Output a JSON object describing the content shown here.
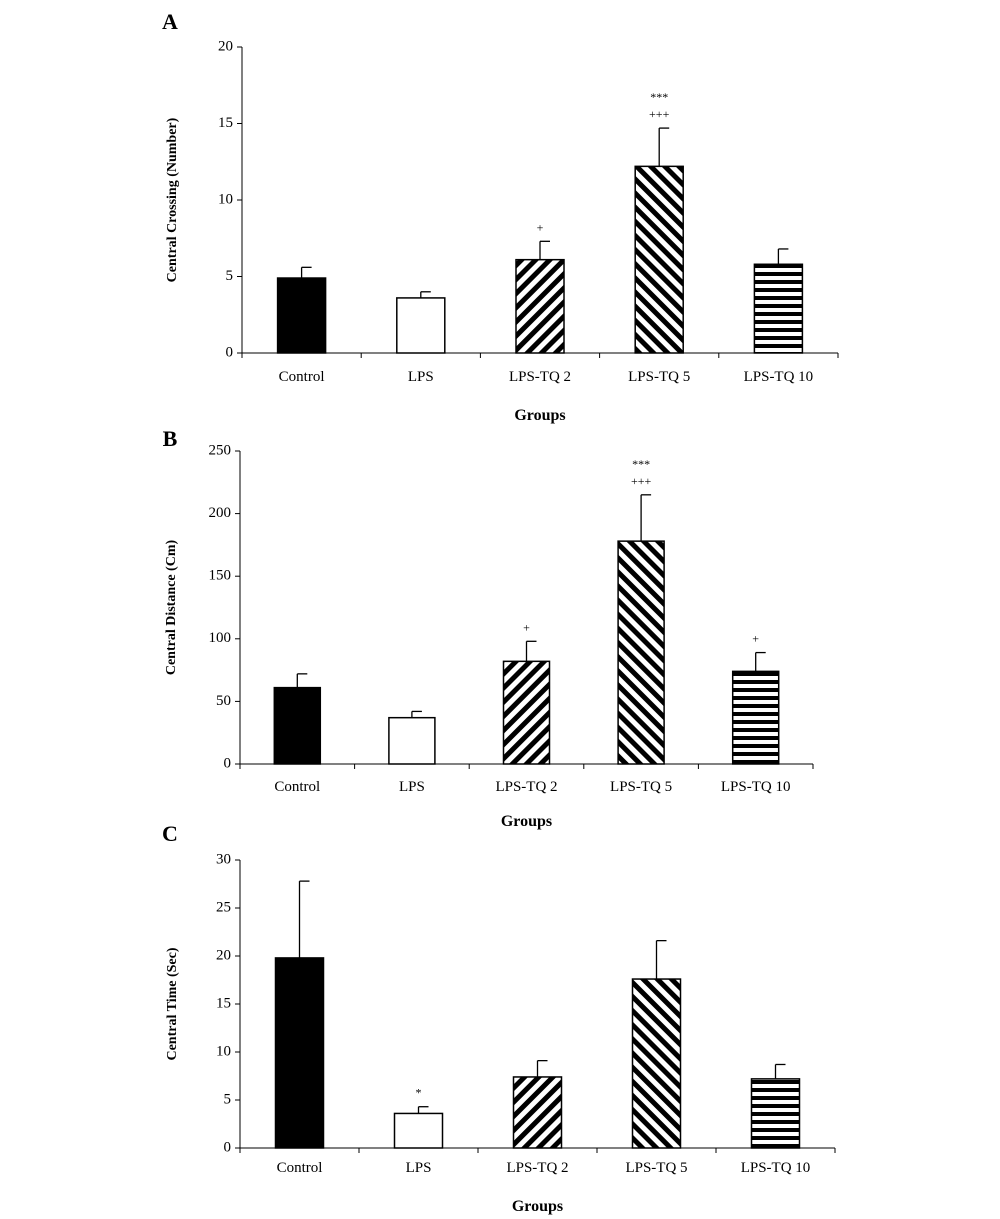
{
  "chart_data": [
    {
      "type": "bar",
      "panel": "A",
      "categories": [
        "Control",
        "LPS",
        "LPS-TQ 2",
        "LPS-TQ 5",
        "LPS-TQ 10"
      ],
      "values": [
        4.9,
        3.6,
        6.1,
        12.2,
        5.8
      ],
      "errors": [
        0.7,
        0.4,
        1.2,
        2.5,
        1.0
      ],
      "annotations": [
        "",
        "",
        "+",
        "***\n+++",
        ""
      ],
      "xlabel": "Groups",
      "ylabel": "Central Crossing (Number)",
      "ylim": [
        0,
        20
      ],
      "yticks": [
        0,
        5,
        10,
        15,
        20
      ],
      "grid": false,
      "patterns": [
        "solid",
        "empty",
        "diag-wide",
        "diag-dense",
        "horizontal"
      ]
    },
    {
      "type": "bar",
      "panel": "B",
      "categories": [
        "Control",
        "LPS",
        "LPS-TQ 2",
        "LPS-TQ 5",
        "LPS-TQ 10"
      ],
      "values": [
        61,
        37,
        82,
        178,
        74
      ],
      "errors": [
        11,
        5,
        16,
        37,
        15
      ],
      "annotations": [
        "",
        "",
        "+",
        "***\n+++",
        "+"
      ],
      "xlabel": "Groups",
      "ylabel": "Central Distance (Cm)",
      "ylim": [
        0,
        250
      ],
      "yticks": [
        0,
        50,
        100,
        150,
        200,
        250
      ],
      "grid": false,
      "patterns": [
        "solid",
        "empty",
        "diag-wide",
        "diag-dense",
        "horizontal"
      ]
    },
    {
      "type": "bar",
      "panel": "C",
      "categories": [
        "Control",
        "LPS",
        "LPS-TQ 2",
        "LPS-TQ 5",
        "LPS-TQ 10"
      ],
      "values": [
        19.8,
        3.6,
        7.4,
        17.6,
        7.2
      ],
      "errors": [
        8.0,
        0.7,
        1.7,
        4.0,
        1.5
      ],
      "annotations": [
        "",
        "*",
        "",
        "",
        ""
      ],
      "xlabel": "Groups",
      "ylabel": "Central Time (Sec)",
      "ylim": [
        0,
        30
      ],
      "yticks": [
        0,
        5,
        10,
        15,
        20,
        25,
        30
      ],
      "grid": false,
      "patterns": [
        "solid",
        "empty",
        "diag-wide",
        "diag-dense",
        "horizontal"
      ]
    }
  ]
}
